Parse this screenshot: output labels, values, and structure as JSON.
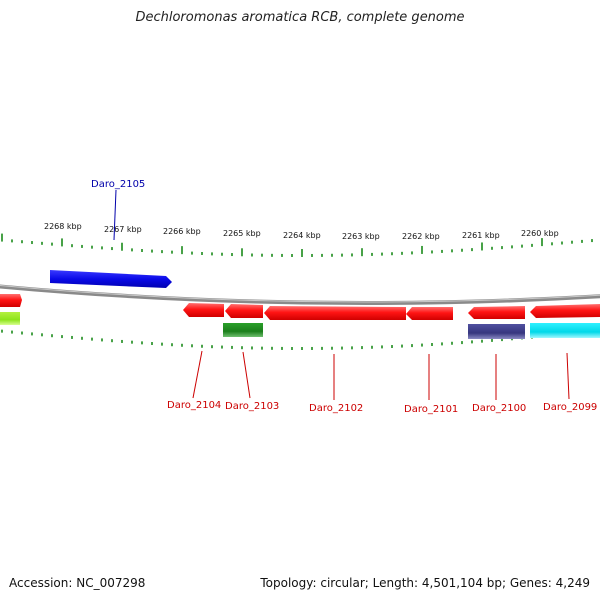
{
  "title": "Dechloromonas aromatica RCB, complete genome",
  "footer": {
    "accession": "Accession: NC_007298",
    "summary": "Topology: circular; Length: 4,501,104 bp; Genes: 4,249"
  },
  "colors": {
    "backbone": "#8a8a8a",
    "tick": "#1a8a1a",
    "label_top": "#0000aa",
    "label_bottom": "#cc0000",
    "gene_red": "#ff1a1a",
    "gene_blue": "#1010e0",
    "gene_green": "#1e8a1e",
    "gene_lime": "#99ee22",
    "gene_navy": "#3f3f8f",
    "gene_cyan": "#12e0ee"
  },
  "scale_labels": [
    "2268 kbp",
    "2267 kbp",
    "2266 kbp",
    "2265 kbp",
    "2264 kbp",
    "2263 kbp",
    "2262 kbp",
    "2261 kbp",
    "2260 kbp"
  ],
  "genes": [
    {
      "label": "Daro_2105",
      "strand": "+",
      "color": "gene_blue"
    },
    {
      "label": "Daro_2104",
      "strand": "-",
      "color": "gene_red"
    },
    {
      "label": "Daro_2103",
      "strand": "-",
      "color": "gene_red"
    },
    {
      "label": "Daro_2102",
      "strand": "-",
      "color": "gene_red"
    },
    {
      "label": "Daro_2101",
      "strand": "-",
      "color": "gene_red"
    },
    {
      "label": "Daro_2100",
      "strand": "-",
      "color": "gene_red"
    },
    {
      "label": "Daro_2099",
      "strand": "-",
      "color": "gene_red"
    }
  ]
}
